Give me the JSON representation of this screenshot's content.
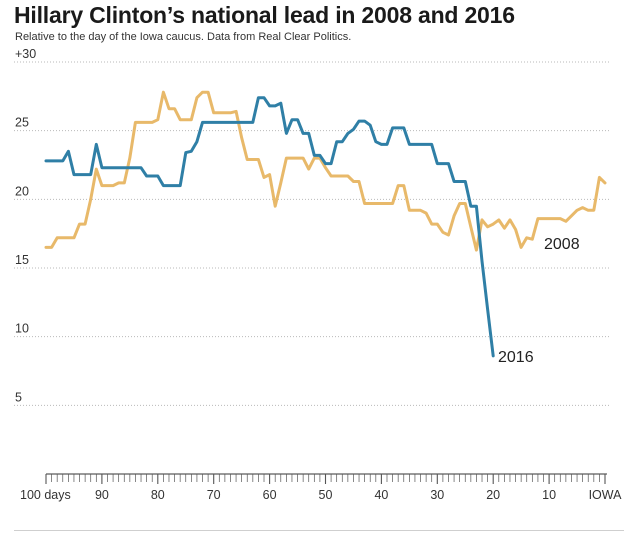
{
  "header": {
    "title": "Hillary Clinton’s national lead in 2008 and 2016",
    "subtitle": "Relative to the day of the Iowa caucus. Data from Real Clear Politics."
  },
  "chart_data": {
    "type": "line",
    "title": "Hillary Clinton’s national lead in 2008 and 2016",
    "subtitle": "Relative to the day of the Iowa caucus. Data from Real Clear Politics.",
    "xlabel": "",
    "ylabel": "",
    "xlim": [
      100,
      0
    ],
    "ylim": [
      0,
      30
    ],
    "grid": true,
    "x_ticks": [
      {
        "value": 100,
        "label": "100 days"
      },
      {
        "value": 90,
        "label": "90"
      },
      {
        "value": 80,
        "label": "80"
      },
      {
        "value": 70,
        "label": "70"
      },
      {
        "value": 60,
        "label": "60"
      },
      {
        "value": 50,
        "label": "50"
      },
      {
        "value": 40,
        "label": "40"
      },
      {
        "value": 30,
        "label": "30"
      },
      {
        "value": 20,
        "label": "20"
      },
      {
        "value": 10,
        "label": "10"
      },
      {
        "value": 0,
        "label": "IOWA"
      }
    ],
    "y_ticks": [
      {
        "value": 30,
        "label": "+30"
      },
      {
        "value": 25,
        "label": "25"
      },
      {
        "value": 20,
        "label": "20"
      },
      {
        "value": 15,
        "label": "15"
      },
      {
        "value": 10,
        "label": "10"
      },
      {
        "value": 5,
        "label": "5"
      }
    ],
    "series": [
      {
        "name": "2008",
        "color": "#e8b96a",
        "points": [
          [
            100,
            16.5
          ],
          [
            99,
            16.5
          ],
          [
            98,
            17.2
          ],
          [
            97,
            17.2
          ],
          [
            96,
            17.2
          ],
          [
            95,
            17.2
          ],
          [
            94,
            18.2
          ],
          [
            93,
            18.2
          ],
          [
            92,
            20.0
          ],
          [
            91,
            22.2
          ],
          [
            90,
            21.0
          ],
          [
            89,
            21.0
          ],
          [
            88,
            21.0
          ],
          [
            87,
            21.2
          ],
          [
            86,
            21.2
          ],
          [
            85,
            23.0
          ],
          [
            84,
            25.6
          ],
          [
            83,
            25.6
          ],
          [
            82,
            25.6
          ],
          [
            81,
            25.6
          ],
          [
            80,
            25.8
          ],
          [
            79,
            27.8
          ],
          [
            78,
            26.6
          ],
          [
            77,
            26.6
          ],
          [
            76,
            25.8
          ],
          [
            75,
            25.8
          ],
          [
            74,
            25.8
          ],
          [
            73,
            27.4
          ],
          [
            72,
            27.8
          ],
          [
            71,
            27.8
          ],
          [
            70,
            26.3
          ],
          [
            69,
            26.3
          ],
          [
            68,
            26.3
          ],
          [
            67,
            26.3
          ],
          [
            66,
            26.4
          ],
          [
            65,
            24.5
          ],
          [
            64,
            22.9
          ],
          [
            63,
            22.9
          ],
          [
            62,
            22.9
          ],
          [
            61,
            21.6
          ],
          [
            60,
            21.8
          ],
          [
            59,
            19.5
          ],
          [
            58,
            21.2
          ],
          [
            57,
            23.0
          ],
          [
            56,
            23.0
          ],
          [
            55,
            23.0
          ],
          [
            54,
            23.0
          ],
          [
            53,
            22.2
          ],
          [
            52,
            23.0
          ],
          [
            51,
            23.0
          ],
          [
            50,
            22.3
          ],
          [
            49,
            21.7
          ],
          [
            48,
            21.7
          ],
          [
            47,
            21.7
          ],
          [
            46,
            21.7
          ],
          [
            45,
            21.3
          ],
          [
            44,
            21.3
          ],
          [
            43,
            19.7
          ],
          [
            42,
            19.7
          ],
          [
            41,
            19.7
          ],
          [
            40,
            19.7
          ],
          [
            39,
            19.7
          ],
          [
            38,
            19.7
          ],
          [
            37,
            21.0
          ],
          [
            36,
            21.0
          ],
          [
            35,
            19.2
          ],
          [
            34,
            19.2
          ],
          [
            33,
            19.2
          ],
          [
            32,
            19.0
          ],
          [
            31,
            18.2
          ],
          [
            30,
            18.2
          ],
          [
            29,
            17.6
          ],
          [
            28,
            17.4
          ],
          [
            27,
            18.8
          ],
          [
            26,
            19.7
          ],
          [
            25,
            19.7
          ],
          [
            24,
            18.0
          ],
          [
            23,
            16.3
          ],
          [
            22,
            18.5
          ],
          [
            21,
            18.0
          ],
          [
            20,
            18.2
          ],
          [
            19,
            18.5
          ],
          [
            18,
            17.9
          ],
          [
            17,
            18.5
          ],
          [
            16,
            17.8
          ],
          [
            15,
            16.5
          ],
          [
            14,
            17.2
          ],
          [
            13,
            17.1
          ],
          [
            12,
            18.6
          ],
          [
            11,
            18.6
          ],
          [
            10,
            18.6
          ],
          [
            9,
            18.6
          ],
          [
            8,
            18.6
          ],
          [
            7,
            18.4
          ],
          [
            6,
            18.8
          ],
          [
            5,
            19.2
          ],
          [
            4,
            19.4
          ],
          [
            3,
            19.2
          ],
          [
            2,
            19.2
          ],
          [
            1,
            21.6
          ],
          [
            0,
            21.2
          ]
        ]
      },
      {
        "name": "2016",
        "color": "#2f7fa6",
        "points": [
          [
            100,
            22.8
          ],
          [
            99,
            22.8
          ],
          [
            98,
            22.8
          ],
          [
            97,
            22.8
          ],
          [
            96,
            23.5
          ],
          [
            95,
            21.8
          ],
          [
            94,
            21.8
          ],
          [
            93,
            21.8
          ],
          [
            92,
            21.8
          ],
          [
            91,
            24.0
          ],
          [
            90,
            22.3
          ],
          [
            89,
            22.3
          ],
          [
            88,
            22.3
          ],
          [
            87,
            22.3
          ],
          [
            86,
            22.3
          ],
          [
            85,
            22.3
          ],
          [
            84,
            22.3
          ],
          [
            83,
            22.3
          ],
          [
            82,
            21.7
          ],
          [
            81,
            21.7
          ],
          [
            80,
            21.7
          ],
          [
            79,
            21.0
          ],
          [
            78,
            21.0
          ],
          [
            77,
            21.0
          ],
          [
            76,
            21.0
          ],
          [
            75,
            23.4
          ],
          [
            74,
            23.5
          ],
          [
            73,
            24.2
          ],
          [
            72,
            25.6
          ],
          [
            71,
            25.6
          ],
          [
            70,
            25.6
          ],
          [
            69,
            25.6
          ],
          [
            68,
            25.6
          ],
          [
            67,
            25.6
          ],
          [
            66,
            25.6
          ],
          [
            65,
            25.6
          ],
          [
            64,
            25.6
          ],
          [
            63,
            25.6
          ],
          [
            62,
            27.4
          ],
          [
            61,
            27.4
          ],
          [
            60,
            26.8
          ],
          [
            59,
            26.8
          ],
          [
            58,
            27.0
          ],
          [
            57,
            24.8
          ],
          [
            56,
            25.8
          ],
          [
            55,
            25.8
          ],
          [
            54,
            24.8
          ],
          [
            53,
            24.8
          ],
          [
            52,
            23.2
          ],
          [
            51,
            23.2
          ],
          [
            50,
            22.6
          ],
          [
            49,
            22.6
          ],
          [
            48,
            24.2
          ],
          [
            47,
            24.2
          ],
          [
            46,
            24.8
          ],
          [
            45,
            25.1
          ],
          [
            44,
            25.7
          ],
          [
            43,
            25.7
          ],
          [
            42,
            25.4
          ],
          [
            41,
            24.2
          ],
          [
            40,
            24.0
          ],
          [
            39,
            24.0
          ],
          [
            38,
            25.2
          ],
          [
            37,
            25.2
          ],
          [
            36,
            25.2
          ],
          [
            35,
            24.0
          ],
          [
            34,
            24.0
          ],
          [
            33,
            24.0
          ],
          [
            32,
            24.0
          ],
          [
            31,
            24.0
          ],
          [
            30,
            22.6
          ],
          [
            29,
            22.6
          ],
          [
            28,
            22.6
          ],
          [
            27,
            21.3
          ],
          [
            26,
            21.3
          ],
          [
            25,
            21.3
          ],
          [
            24,
            19.5
          ],
          [
            23,
            19.5
          ],
          [
            22,
            15.5
          ],
          [
            21,
            12.0
          ],
          [
            20,
            8.6
          ]
        ]
      }
    ]
  }
}
